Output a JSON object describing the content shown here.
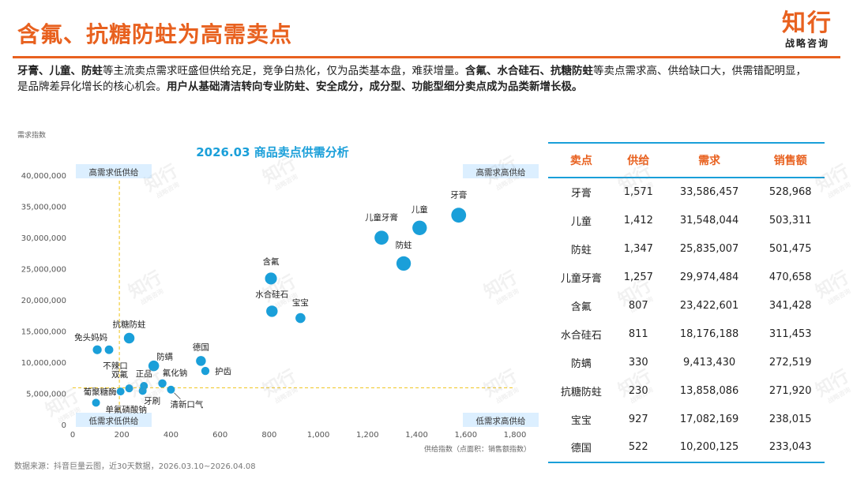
{
  "header": {
    "title": "含氟、抗糖防蛀为高需卖点",
    "logo_main": "知行",
    "logo_sub": "战略咨询"
  },
  "summary": {
    "p1_bold": "牙膏、儿童、防蛀",
    "p2": "等主流卖点需求旺盛但供给充足，竞争白热化，仅为品类基本盘，难获增量。",
    "p3_bold": "含氟、水合硅石、抗糖防蛀",
    "p4": "等卖点需求高、供给缺口大，供需错配明显，是品牌差异化增长的核心机会。",
    "p5_bold": "用户从基础清洁转向专业防蛀、安全成分，成分型、功能型细分卖点成为品类新增长极。"
  },
  "chart_data": {
    "type": "scatter",
    "title": "2026.03 商品卖点供需分析",
    "ylabel": "需求指数",
    "xlabel": "供给指数（点面积：销售额指数）",
    "xlim": [
      0,
      1800
    ],
    "ylim": [
      0,
      40000000
    ],
    "xticks": [
      0,
      200,
      400,
      600,
      800,
      1000,
      1200,
      1400,
      1600,
      1800
    ],
    "xtick_labels": [
      "0",
      "200",
      "400",
      "600",
      "800",
      "1,000",
      "1,200",
      "1,400",
      "1,600",
      "1,800"
    ],
    "yticks": [
      0,
      5000000,
      10000000,
      15000000,
      20000000,
      25000000,
      30000000,
      35000000,
      40000000
    ],
    "ytick_labels": [
      "0",
      "5,000,000",
      "10,000,000",
      "15,000,000",
      "20,000,000",
      "25,000,000",
      "30,000,000",
      "35,000,000",
      "40,000,000"
    ],
    "ref_x": 190,
    "ref_y": 5900000,
    "quadrants": {
      "top_left": "高需求低供给",
      "top_right": "高需求高供给",
      "bottom_left": "低需求低供给",
      "bottom_right": "低需求高供给"
    },
    "point_color": "#1a9fd9",
    "ref_line_color": "#f0c419",
    "points": [
      {
        "label": "牙膏",
        "x": 1571,
        "y": 33586457,
        "size": 528968
      },
      {
        "label": "儿童",
        "x": 1412,
        "y": 31548044,
        "size": 503311
      },
      {
        "label": "防蛀",
        "x": 1347,
        "y": 25835007,
        "size": 501475
      },
      {
        "label": "儿童牙膏",
        "x": 1257,
        "y": 29974484,
        "size": 470658
      },
      {
        "label": "含氟",
        "x": 807,
        "y": 23422601,
        "size": 341428
      },
      {
        "label": "水合硅石",
        "x": 811,
        "y": 18176188,
        "size": 311453
      },
      {
        "label": "宝宝",
        "x": 927,
        "y": 17082169,
        "size": 238015
      },
      {
        "label": "防螨",
        "x": 330,
        "y": 9413430,
        "size": 272519
      },
      {
        "label": "抗糖防蛀",
        "x": 230,
        "y": 13858086,
        "size": 271920
      },
      {
        "label": "德国",
        "x": 522,
        "y": 10200125,
        "size": 233043
      },
      {
        "label": "免头妈妈",
        "x": 100,
        "y": 12000000,
        "size": 190000
      },
      {
        "label": "不辣口",
        "x": 148,
        "y": 12000000,
        "size": 175000
      },
      {
        "label": "护齿",
        "x": 540,
        "y": 8600000,
        "size": 160000
      },
      {
        "label": "氟化钠",
        "x": 365,
        "y": 6600000,
        "size": 165000
      },
      {
        "label": "正品",
        "x": 290,
        "y": 6200000,
        "size": 150000
      },
      {
        "label": "双氟",
        "x": 230,
        "y": 5800000,
        "size": 145000
      },
      {
        "label": "葡聚糖酶",
        "x": 195,
        "y": 5300000,
        "size": 145000
      },
      {
        "label": "牙刷",
        "x": 285,
        "y": 5400000,
        "size": 145000
      },
      {
        "label": "清新口气",
        "x": 400,
        "y": 5600000,
        "size": 150000
      },
      {
        "label": "单氟磷酸钠",
        "x": 95,
        "y": 3500000,
        "size": 140000
      }
    ]
  },
  "table": {
    "headers": [
      "卖点",
      "供给",
      "需求",
      "销售额"
    ],
    "rows": [
      [
        "牙膏",
        "1,571",
        "33,586,457",
        "528,968"
      ],
      [
        "儿童",
        "1,412",
        "31,548,044",
        "503,311"
      ],
      [
        "防蛀",
        "1,347",
        "25,835,007",
        "501,475"
      ],
      [
        "儿童牙膏",
        "1,257",
        "29,974,484",
        "470,658"
      ],
      [
        "含氟",
        "807",
        "23,422,601",
        "341,428"
      ],
      [
        "水合硅石",
        "811",
        "18,176,188",
        "311,453"
      ],
      [
        "防螨",
        "330",
        "9,413,430",
        "272,519"
      ],
      [
        "抗糖防蛀",
        "230",
        "13,858,086",
        "271,920"
      ],
      [
        "宝宝",
        "927",
        "17,082,169",
        "238,015"
      ],
      [
        "德国",
        "522",
        "10,200,125",
        "233,043"
      ]
    ]
  },
  "footer": {
    "source": "数据来源：抖音巨量云图，近30天数据，2026.03.10~2026.04.08"
  }
}
